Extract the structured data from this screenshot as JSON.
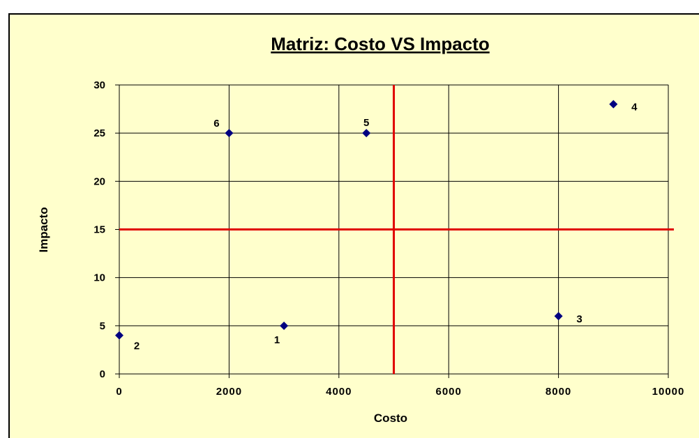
{
  "chart_data": {
    "type": "scatter",
    "title": "Matriz: Costo VS Impacto",
    "x_label": "Costo",
    "y_label": "Impacto",
    "series": [
      {
        "name": "Impacto",
        "color": "#000080",
        "x": [
          3000,
          0,
          8000,
          9000,
          4500,
          2000
        ],
        "values": [
          5,
          4,
          6,
          28,
          25,
          25
        ]
      }
    ],
    "point_labels": [
      "1",
      "2",
      "3",
      "4",
      "5",
      "6"
    ],
    "xlim": [
      0,
      10000
    ],
    "xticks": [
      0,
      2000,
      4000,
      6000,
      8000,
      10000
    ],
    "ylim": [
      0,
      30
    ],
    "yticks": [
      0,
      5,
      10,
      15,
      20,
      25,
      30
    ],
    "grid": true,
    "reference_lines": {
      "x": 5000,
      "y": 15,
      "color": "#e00000"
    }
  }
}
